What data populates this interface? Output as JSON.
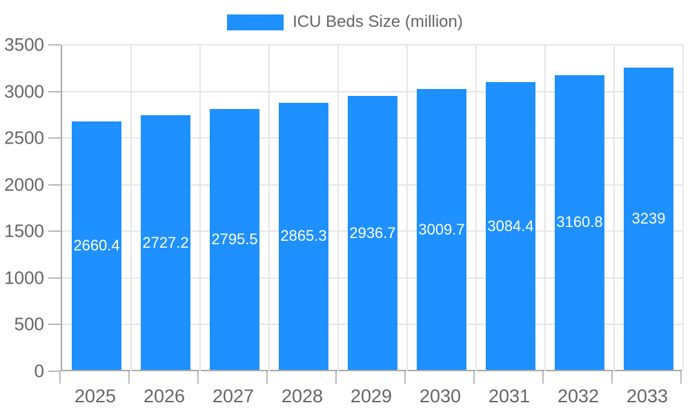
{
  "chart_data": {
    "type": "bar",
    "title": "ICU Beds Size (million)",
    "categories": [
      "2025",
      "2026",
      "2027",
      "2028",
      "2029",
      "2030",
      "2031",
      "2032",
      "2033"
    ],
    "values": [
      2660.4,
      2727.2,
      2795.5,
      2865.3,
      2936.7,
      3009.7,
      3084.4,
      3160.8,
      3239
    ],
    "value_labels": [
      "2660.4",
      "2727.2",
      "2795.5",
      "2865.3",
      "2936.7",
      "3009.7",
      "3084.4",
      "3160.8",
      "3239"
    ],
    "xlabel": "",
    "ylabel": "",
    "ylim": [
      0,
      3500
    ],
    "y_ticks": [
      0,
      500,
      1000,
      1500,
      2000,
      2500,
      3000,
      3500
    ],
    "grid": true,
    "legend_position": "top",
    "legend_items": [
      {
        "label": "ICU Beds Size (million)",
        "color": "#1e90ff"
      }
    ],
    "colors": {
      "bar": "#1e90ff",
      "axis_label": "#666666",
      "grid_line": "#e6e6e6",
      "axis_line": "#a8a8a8",
      "tick": "#b8b8b8",
      "data_label": "#ffffff",
      "background": "#ffffff"
    }
  }
}
